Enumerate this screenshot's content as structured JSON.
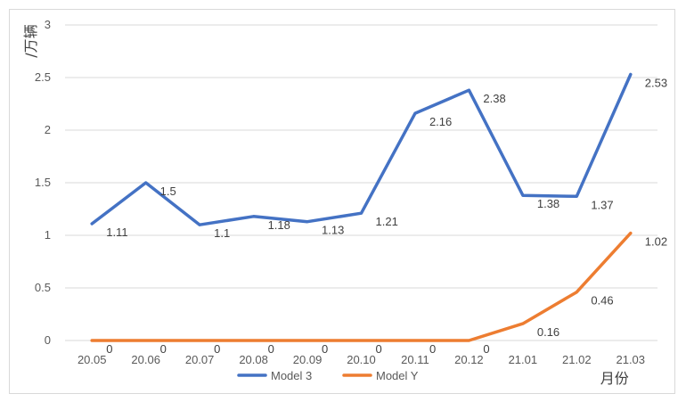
{
  "chart_data": {
    "type": "line",
    "title": "",
    "ylabel": "/万辆",
    "xlabel": "月份",
    "ylim": [
      0,
      3
    ],
    "yticks": [
      0,
      0.5,
      1,
      1.5,
      2,
      2.5,
      3
    ],
    "ytick_labels": [
      "0",
      "0.5",
      "1",
      "1.5",
      "2",
      "2.5",
      "3"
    ],
    "grid": true,
    "legend_position": "bottom",
    "categories": [
      "20.05",
      "20.06",
      "20.07",
      "20.08",
      "20.09",
      "20.10",
      "20.11",
      "20.12",
      "21.01",
      "21.02",
      "21.03"
    ],
    "series": [
      {
        "name": "Model 3",
        "color": "#4472C4",
        "values": [
          1.11,
          1.5,
          1.1,
          1.18,
          1.13,
          1.21,
          2.16,
          2.38,
          1.38,
          1.37,
          2.53
        ],
        "labels": [
          "1.11",
          "1.5",
          "1.1",
          "1.18",
          "1.13",
          "1.21",
          "2.16",
          "2.38",
          "1.38",
          "1.37",
          "2.53"
        ]
      },
      {
        "name": "Model Y",
        "color": "#ED7D31",
        "values": [
          0,
          0,
          0,
          0,
          0,
          0,
          0,
          0,
          0.16,
          0.46,
          1.02
        ],
        "labels": [
          "0",
          "0",
          "0",
          "0",
          "0",
          "0",
          "0",
          "0",
          "0.16",
          "0.46",
          "1.02"
        ]
      }
    ]
  }
}
